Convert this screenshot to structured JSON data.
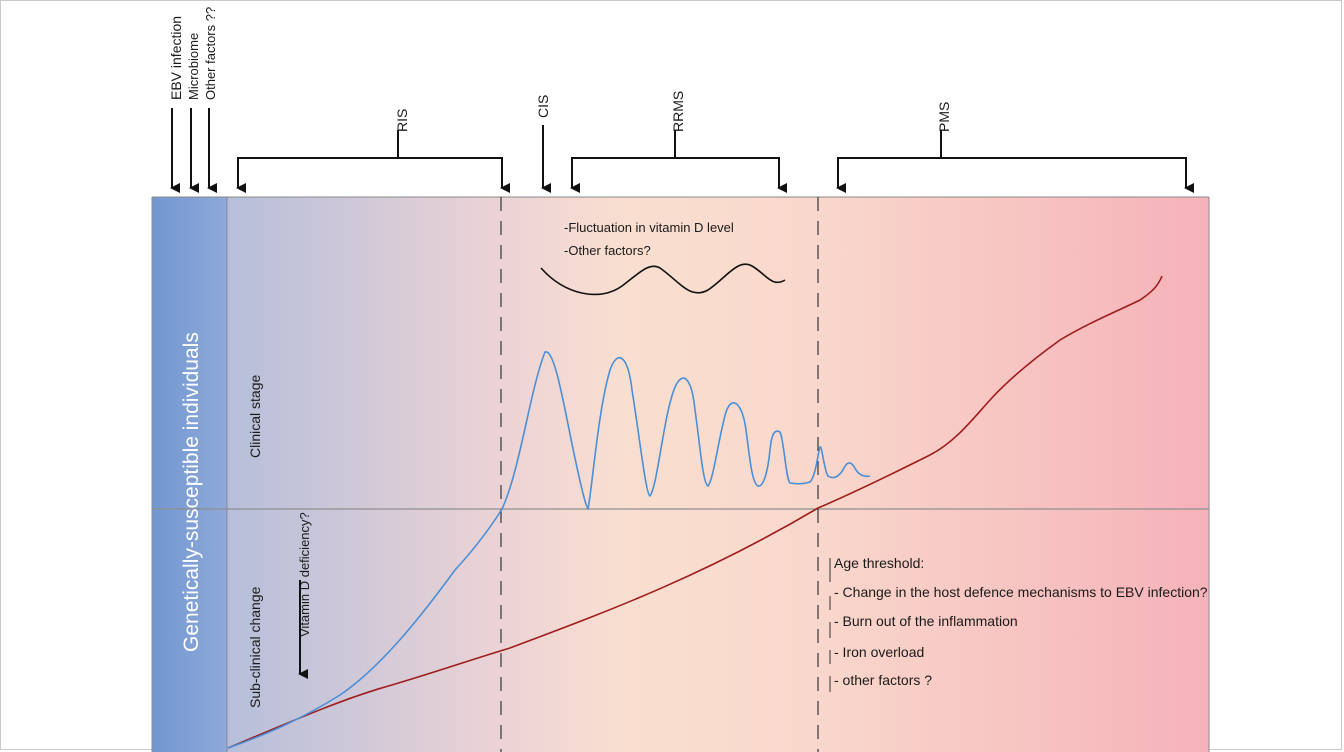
{
  "top_labels": {
    "ebv": "EBV infection",
    "microbiome": "Microbiome",
    "other": "Other factors ??"
  },
  "phases": {
    "ris": "RIS",
    "cis": "CIS",
    "rrms": "RRMS",
    "pms": "PMS"
  },
  "side": {
    "population": "Genetically-susceptible individuals",
    "clinical": "Clinical stage",
    "subclinical": "Sub-clinical change",
    "vitd_def": "Vitamin D deficiency?"
  },
  "vitamin_d_note": {
    "line1": "-Fluctuation in vitamin D level",
    "line2": "-Other factors?"
  },
  "age_threshold": {
    "title": "Age threshold:",
    "items": [
      "- Change in the host defence mechanisms to EBV infection?",
      "- Burn out of the inflammation",
      "- Iron overload",
      "- other factors ?"
    ]
  },
  "colors": {
    "left_band": "#7b9fd3",
    "gradient_start": "#aebfde",
    "gradient_mid": "#f9dccd",
    "gradient_end": "#f5b3ba",
    "blue_curve": "#4a8fd8",
    "red_curve": "#9e1c1c"
  }
}
